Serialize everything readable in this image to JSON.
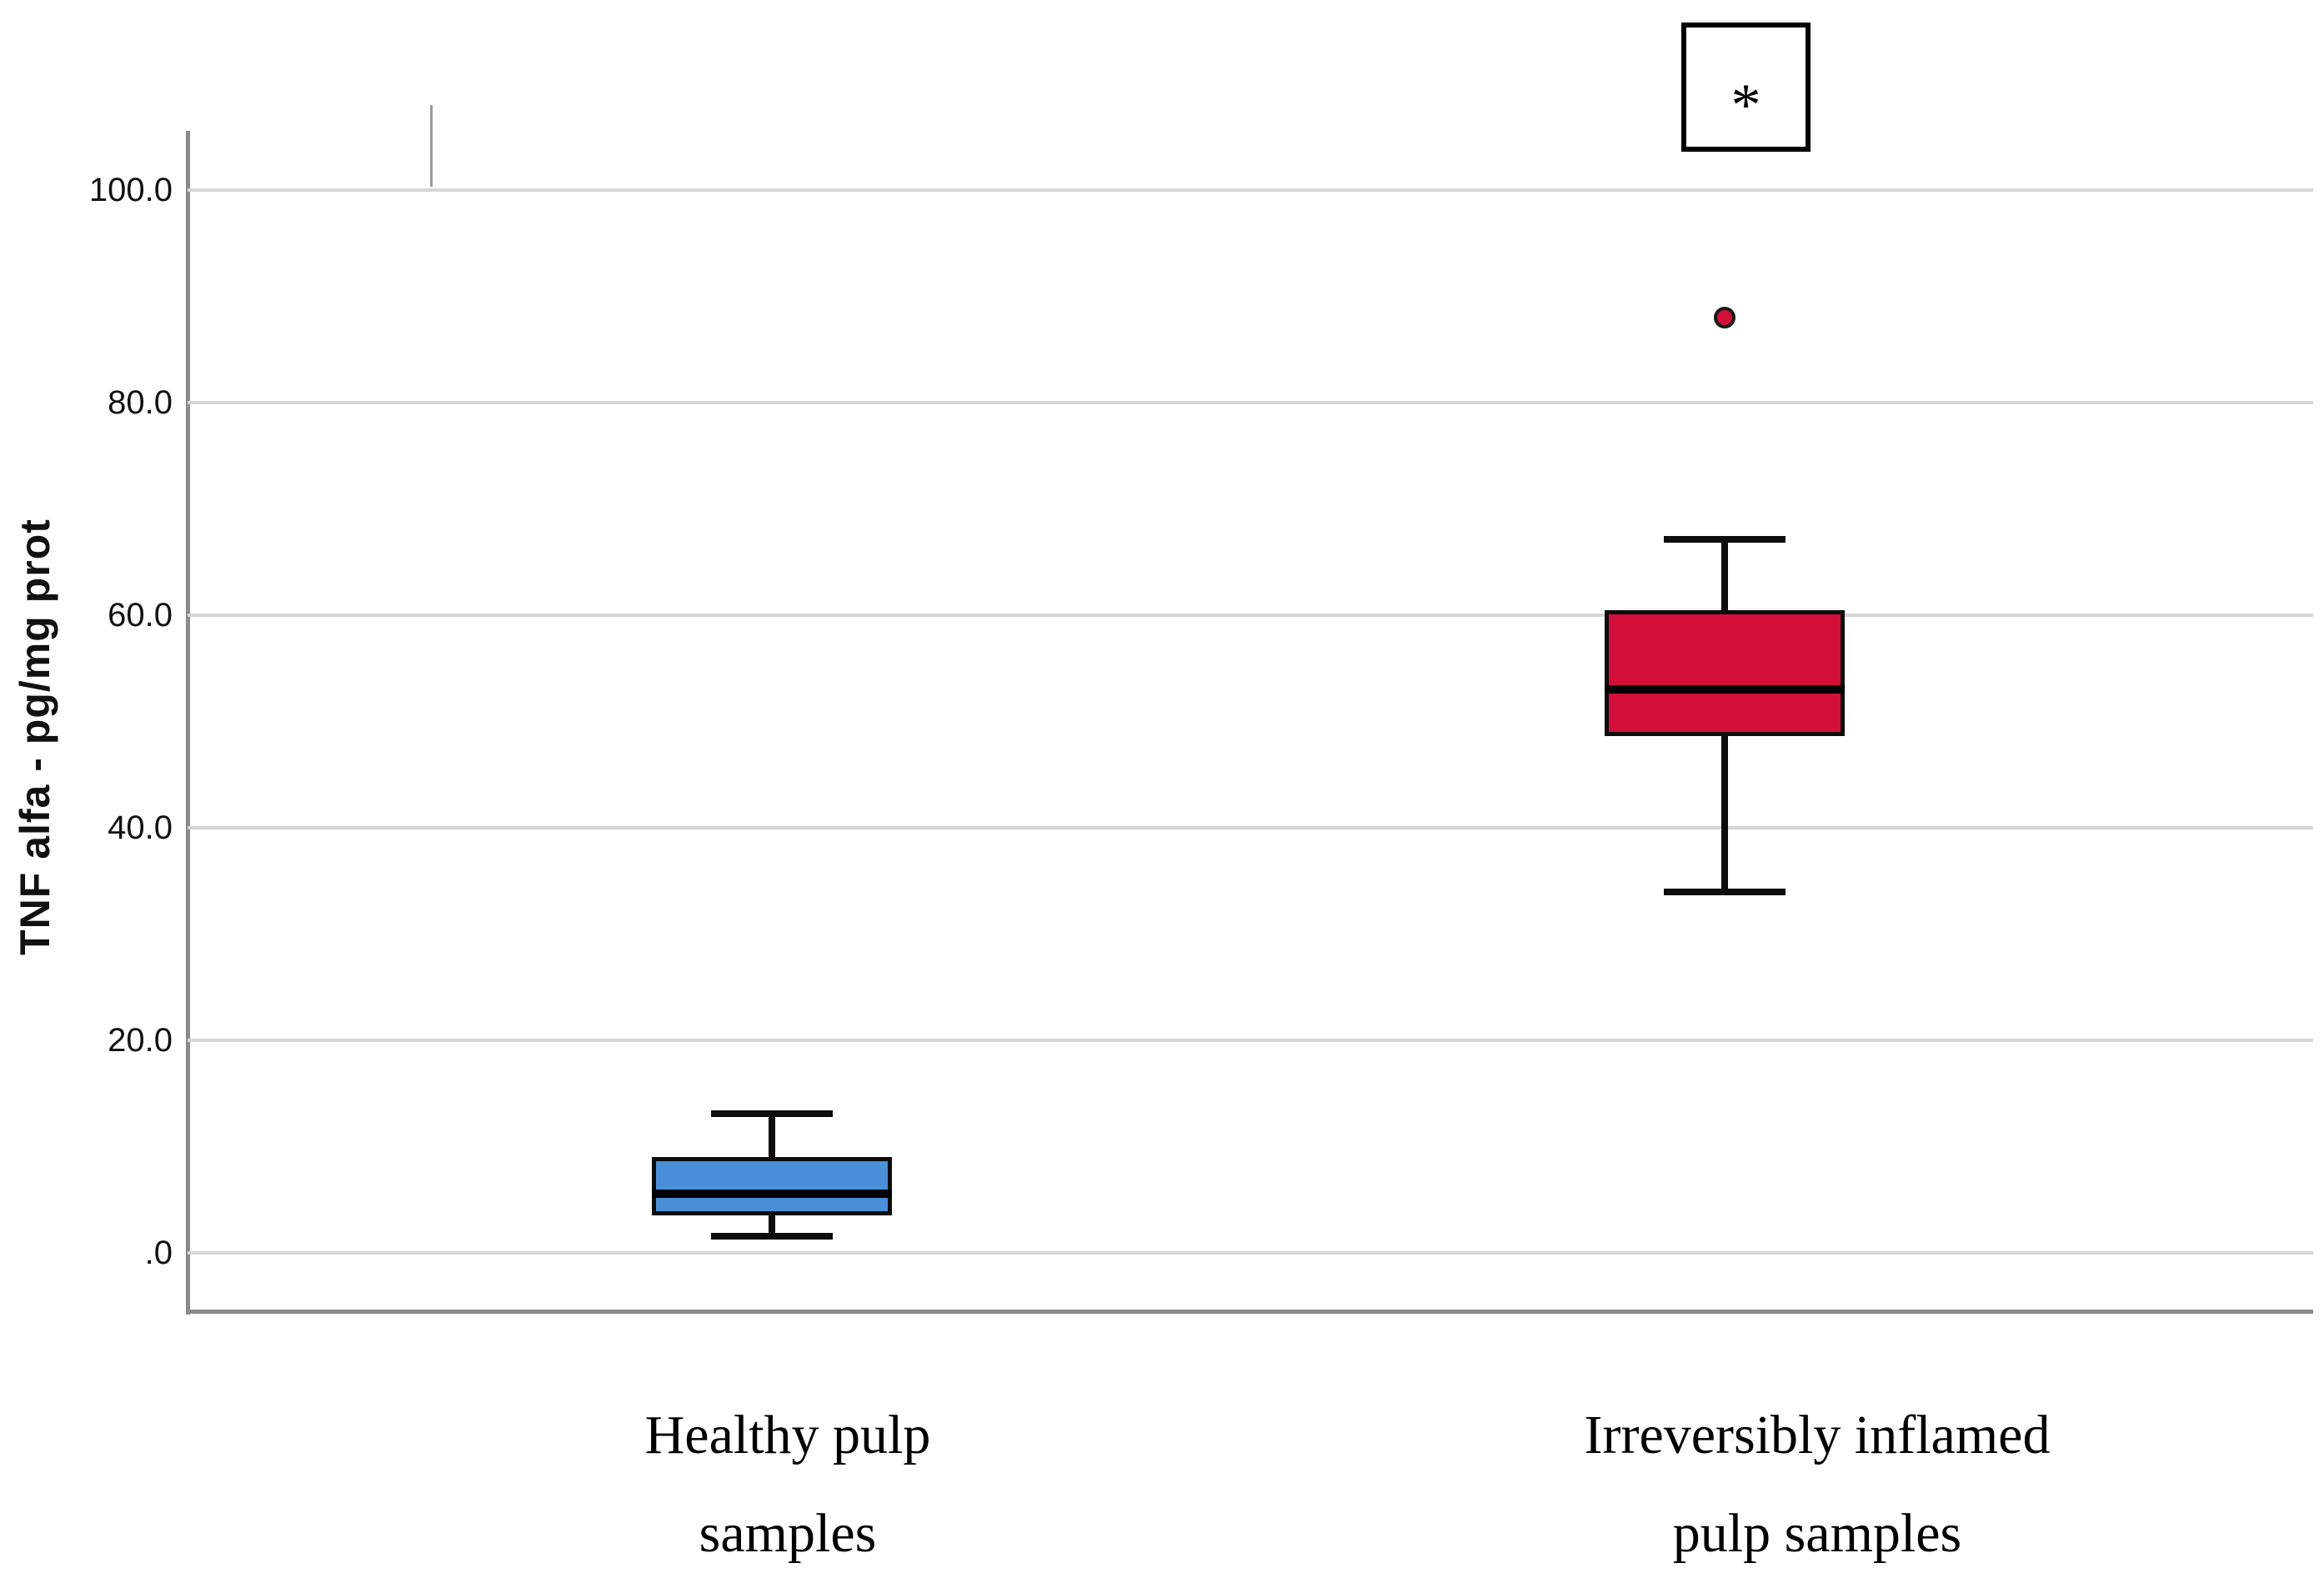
{
  "figure": {
    "background": "#ffffff",
    "accent_colors": {
      "healthy_box_fill": "#4a90d9",
      "inflamed_box_fill": "#d20f39",
      "gridline": "#d6d6d6",
      "axis": "#8a8a8a",
      "stroke": "#000000"
    }
  },
  "y_axis": {
    "title": "TNF alfa - pg/mg prot",
    "tick_labels": [
      "100.0",
      "80.0",
      "60.0",
      "40.0",
      "20.0",
      ".0"
    ],
    "tick_values": [
      100,
      80,
      60,
      40,
      20,
      0
    ]
  },
  "x_axis": {
    "categories": [
      {
        "line1": "Healthy pulp",
        "line2": "samples"
      },
      {
        "line1": "Irreversibly inflamed",
        "line2": "pulp samples"
      }
    ]
  },
  "annotation": {
    "symbol": "*"
  },
  "chart_data": {
    "type": "boxplot",
    "title": "",
    "xlabel": "",
    "ylabel": "TNF alfa - pg/mg prot",
    "ylim": [
      -5.5,
      105.5
    ],
    "yticks": [
      0,
      20,
      40,
      60,
      80,
      100
    ],
    "grid": true,
    "legend": "none",
    "categories": [
      "Healthy pulp samples",
      "Irreversibly inflamed pulp samples"
    ],
    "series": [
      {
        "name": "Healthy pulp samples",
        "color": "#4a90d9",
        "whisker_low": 1.6,
        "q1": 3.5,
        "median": 5.6,
        "q3": 9.0,
        "whisker_high": 13.1,
        "outliers": []
      },
      {
        "name": "Irreversibly inflamed pulp samples",
        "color": "#d20f39",
        "whisker_low": 34.0,
        "q1": 48.6,
        "median": 53.0,
        "q3": 60.5,
        "whisker_high": 67.1,
        "outliers": [
          88.0
        ],
        "significance": "*"
      }
    ]
  }
}
